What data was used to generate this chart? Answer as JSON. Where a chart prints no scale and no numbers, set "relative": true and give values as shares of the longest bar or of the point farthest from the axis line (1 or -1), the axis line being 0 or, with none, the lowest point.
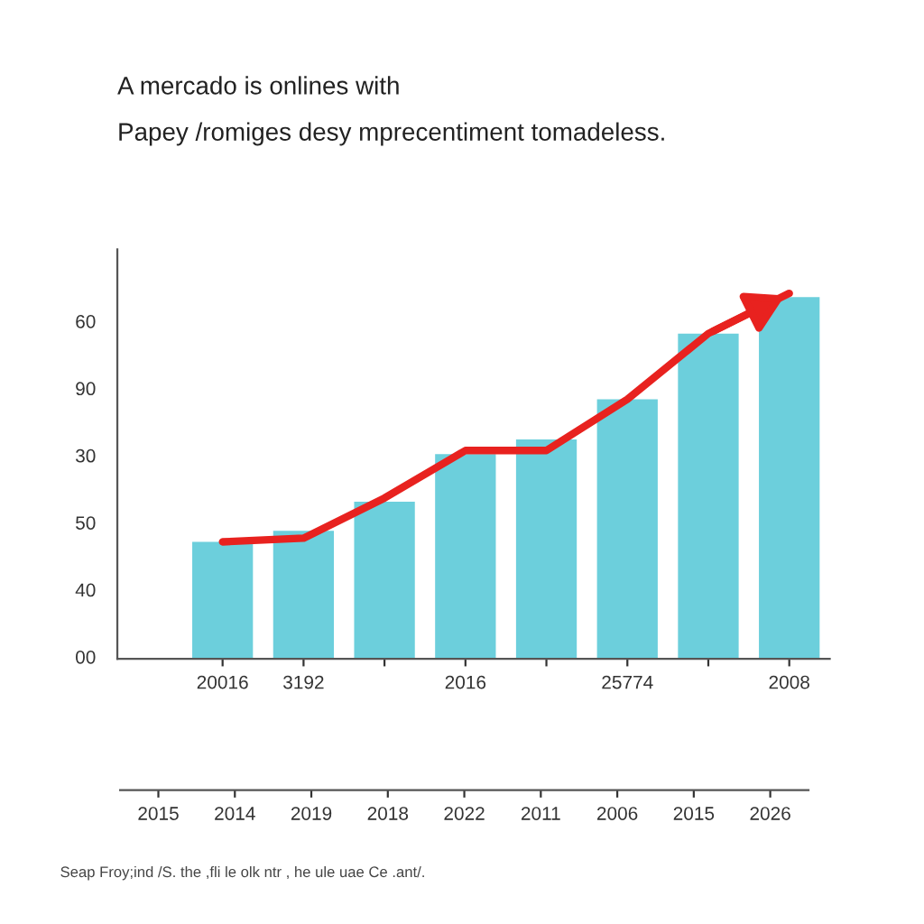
{
  "chart_data": {
    "type": "bar",
    "title": "A mercado is onlines with",
    "subtitle": "Papey /romiges desy mprecentiment tomadeless.",
    "annotations": [
      "00",
      "40",
      "50",
      "30",
      "90",
      "60",
      "2015",
      "2014",
      "2019",
      "2018",
      "2022",
      "2011",
      "2006",
      "2015",
      "2026",
      "Seap Froy;ind /S. the ,fli le olk ntr , he ule uae Ce .ant/."
    ],
    "categories": [
      "20016",
      "3192",
      null,
      "2016",
      null,
      "25774",
      null,
      "2008"
    ],
    "relative": true,
    "series": [
      {
        "color": "#6ccfdc",
        "values": [
          0.32,
          0.35,
          0.43,
          0.56,
          0.6,
          0.71,
          0.89,
          0.99
        ]
      },
      {
        "type": "line",
        "color": "#e8221f",
        "values": [
          0.32,
          0.33,
          0.44,
          0.57,
          0.57,
          0.71,
          0.89,
          1.0
        ]
      }
    ],
    "grid": false,
    "legend": false
  }
}
